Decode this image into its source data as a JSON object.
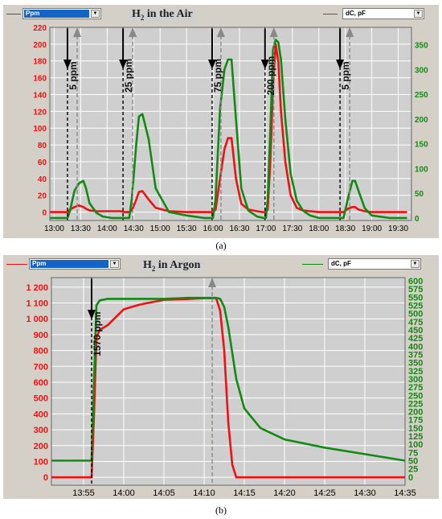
{
  "panel_a": {
    "caption": "(a)",
    "left_select": "Ppm",
    "right_select": "dC, pF",
    "title_pre": "H",
    "title_sub": "2",
    "title_post": " in the Air"
  },
  "panel_b": {
    "caption": "(b)",
    "left_select": "Ppm",
    "right_select": "dC, pF",
    "title_pre": "H",
    "title_sub": "2",
    "title_post": " in Argon"
  },
  "colors": {
    "ppm": "#ee1111",
    "dc": "#118a11",
    "background": "#d4d0c8"
  },
  "chart_data": [
    {
      "type": "line",
      "title": "H2 in the Air",
      "x": [
        "12:55",
        "13:00",
        "13:05",
        "13:10",
        "13:15",
        "13:18",
        "13:23",
        "13:28",
        "13:33",
        "13:36",
        "13:40",
        "13:48",
        "13:55",
        "14:05",
        "14:15",
        "14:20",
        "14:25",
        "14:28",
        "14:33",
        "14:36",
        "14:40",
        "14:47",
        "14:55",
        "15:10",
        "15:30",
        "15:50",
        "16:00",
        "16:03",
        "16:08",
        "16:13",
        "16:17",
        "16:21",
        "16:26",
        "16:32",
        "16:40",
        "16:50",
        "16:57",
        "17:00",
        "17:02",
        "17:05",
        "17:08",
        "17:11",
        "17:14",
        "17:17",
        "17:22",
        "17:28",
        "17:35",
        "17:42",
        "17:50",
        "18:00",
        "18:15",
        "18:25",
        "18:28",
        "18:33",
        "18:38",
        "18:41",
        "18:45",
        "18:52",
        "19:00",
        "19:20",
        "19:40"
      ],
      "series": [
        {
          "name": "Ppm",
          "color": "#ee1111",
          "axis": "left",
          "values": [
            0,
            0,
            0,
            0,
            0,
            3,
            6,
            8,
            6,
            4,
            2,
            1,
            1,
            1,
            1,
            0,
            0,
            2,
            15,
            24,
            25,
            15,
            5,
            1,
            0,
            0,
            0,
            3,
            40,
            75,
            88,
            88,
            40,
            10,
            3,
            1,
            0,
            0,
            3,
            60,
            150,
            200,
            180,
            120,
            60,
            20,
            5,
            2,
            1,
            0,
            0,
            0,
            0,
            4,
            6,
            6,
            3,
            1,
            0,
            0,
            0
          ]
        },
        {
          "name": "dC, pF",
          "color": "#118a11",
          "axis": "right",
          "values": [
            0,
            0,
            0,
            0,
            0,
            15,
            55,
            70,
            75,
            60,
            30,
            10,
            3,
            0,
            0,
            0,
            0,
            40,
            150,
            205,
            210,
            160,
            60,
            12,
            5,
            0,
            0,
            40,
            220,
            300,
            320,
            320,
            200,
            60,
            15,
            3,
            0,
            0,
            40,
            180,
            340,
            360,
            355,
            320,
            200,
            90,
            35,
            15,
            5,
            0,
            0,
            0,
            0,
            40,
            75,
            75,
            55,
            20,
            5,
            0,
            0
          ]
        }
      ],
      "xlim": [
        "12:55",
        "19:45"
      ],
      "ylim_left": [
        -10,
        220
      ],
      "ylim_right": [
        -5,
        385
      ],
      "xticks": [
        "13:00",
        "13:30",
        "14:00",
        "14:30",
        "15:00",
        "15:30",
        "16:00",
        "16:30",
        "17:00",
        "17:30",
        "18:00",
        "18:30",
        "19:00",
        "19:30"
      ],
      "yticks_left": [
        0,
        20,
        40,
        60,
        80,
        100,
        120,
        140,
        160,
        180,
        200,
        220
      ],
      "yticks_right": [
        0,
        50,
        100,
        150,
        200,
        250,
        300,
        350
      ],
      "annotations": [
        {
          "text": "5 ppm",
          "on": "13:15",
          "off": "13:26"
        },
        {
          "text": "25 ppm",
          "on": "14:18",
          "off": "14:29"
        },
        {
          "text": "75 ppm",
          "on": "15:59",
          "off": "16:09"
        },
        {
          "text": "200 ppm",
          "on": "16:59",
          "off": "17:09"
        },
        {
          "text": "5 ppm",
          "on": "18:24",
          "off": "18:35"
        }
      ]
    },
    {
      "type": "line",
      "title": "H2 in Argon",
      "x": [
        "13:51",
        "13:53",
        "13:55",
        "13:56",
        "13:56.3",
        "13:56.6",
        "13:57",
        "13:58",
        "14:00",
        "14:02",
        "14:05",
        "14:08",
        "14:10",
        "14:11",
        "14:11.5",
        "14:12",
        "14:12.5",
        "14:13",
        "14:13.5",
        "14:14",
        "14:15",
        "14:17",
        "14:20",
        "14:25",
        "14:30",
        "14:35"
      ],
      "series": [
        {
          "name": "Ppm",
          "color": "#ee1111",
          "axis": "left",
          "values": [
            0,
            0,
            0,
            0,
            400,
            880,
            930,
            960,
            1060,
            1090,
            1120,
            1125,
            1130,
            1130,
            1130,
            1050,
            800,
            350,
            80,
            0,
            0,
            0,
            0,
            0,
            0,
            0
          ]
        },
        {
          "name": "dC, pF",
          "color": "#118a11",
          "axis": "right",
          "values": [
            50,
            50,
            50,
            50,
            300,
            525,
            540,
            545,
            545,
            545,
            545,
            548,
            548,
            548,
            548,
            545,
            520,
            460,
            380,
            300,
            210,
            150,
            115,
            90,
            70,
            50
          ]
        }
      ],
      "xlim": [
        "13:51",
        "14:35"
      ],
      "ylim_left": [
        -50,
        1260
      ],
      "ylim_right": [
        -25,
        610
      ],
      "xticks": [
        "13:55",
        "14:00",
        "14:05",
        "14:10",
        "14:15",
        "14:20",
        "14:25",
        "14:30",
        "14:35"
      ],
      "yticks_left": [
        "0",
        "100",
        "200",
        "300",
        "400",
        "500",
        "600",
        "700",
        "800",
        "900",
        "1 000",
        "1 100",
        "1 200"
      ],
      "yticks_right": [
        0,
        25,
        50,
        75,
        100,
        125,
        150,
        175,
        200,
        225,
        250,
        275,
        300,
        325,
        350,
        375,
        400,
        425,
        450,
        475,
        500,
        525,
        550,
        575,
        600
      ],
      "annotations": [
        {
          "text": "1570 ppm",
          "on": "13:56",
          "off": "14:11"
        }
      ]
    }
  ]
}
